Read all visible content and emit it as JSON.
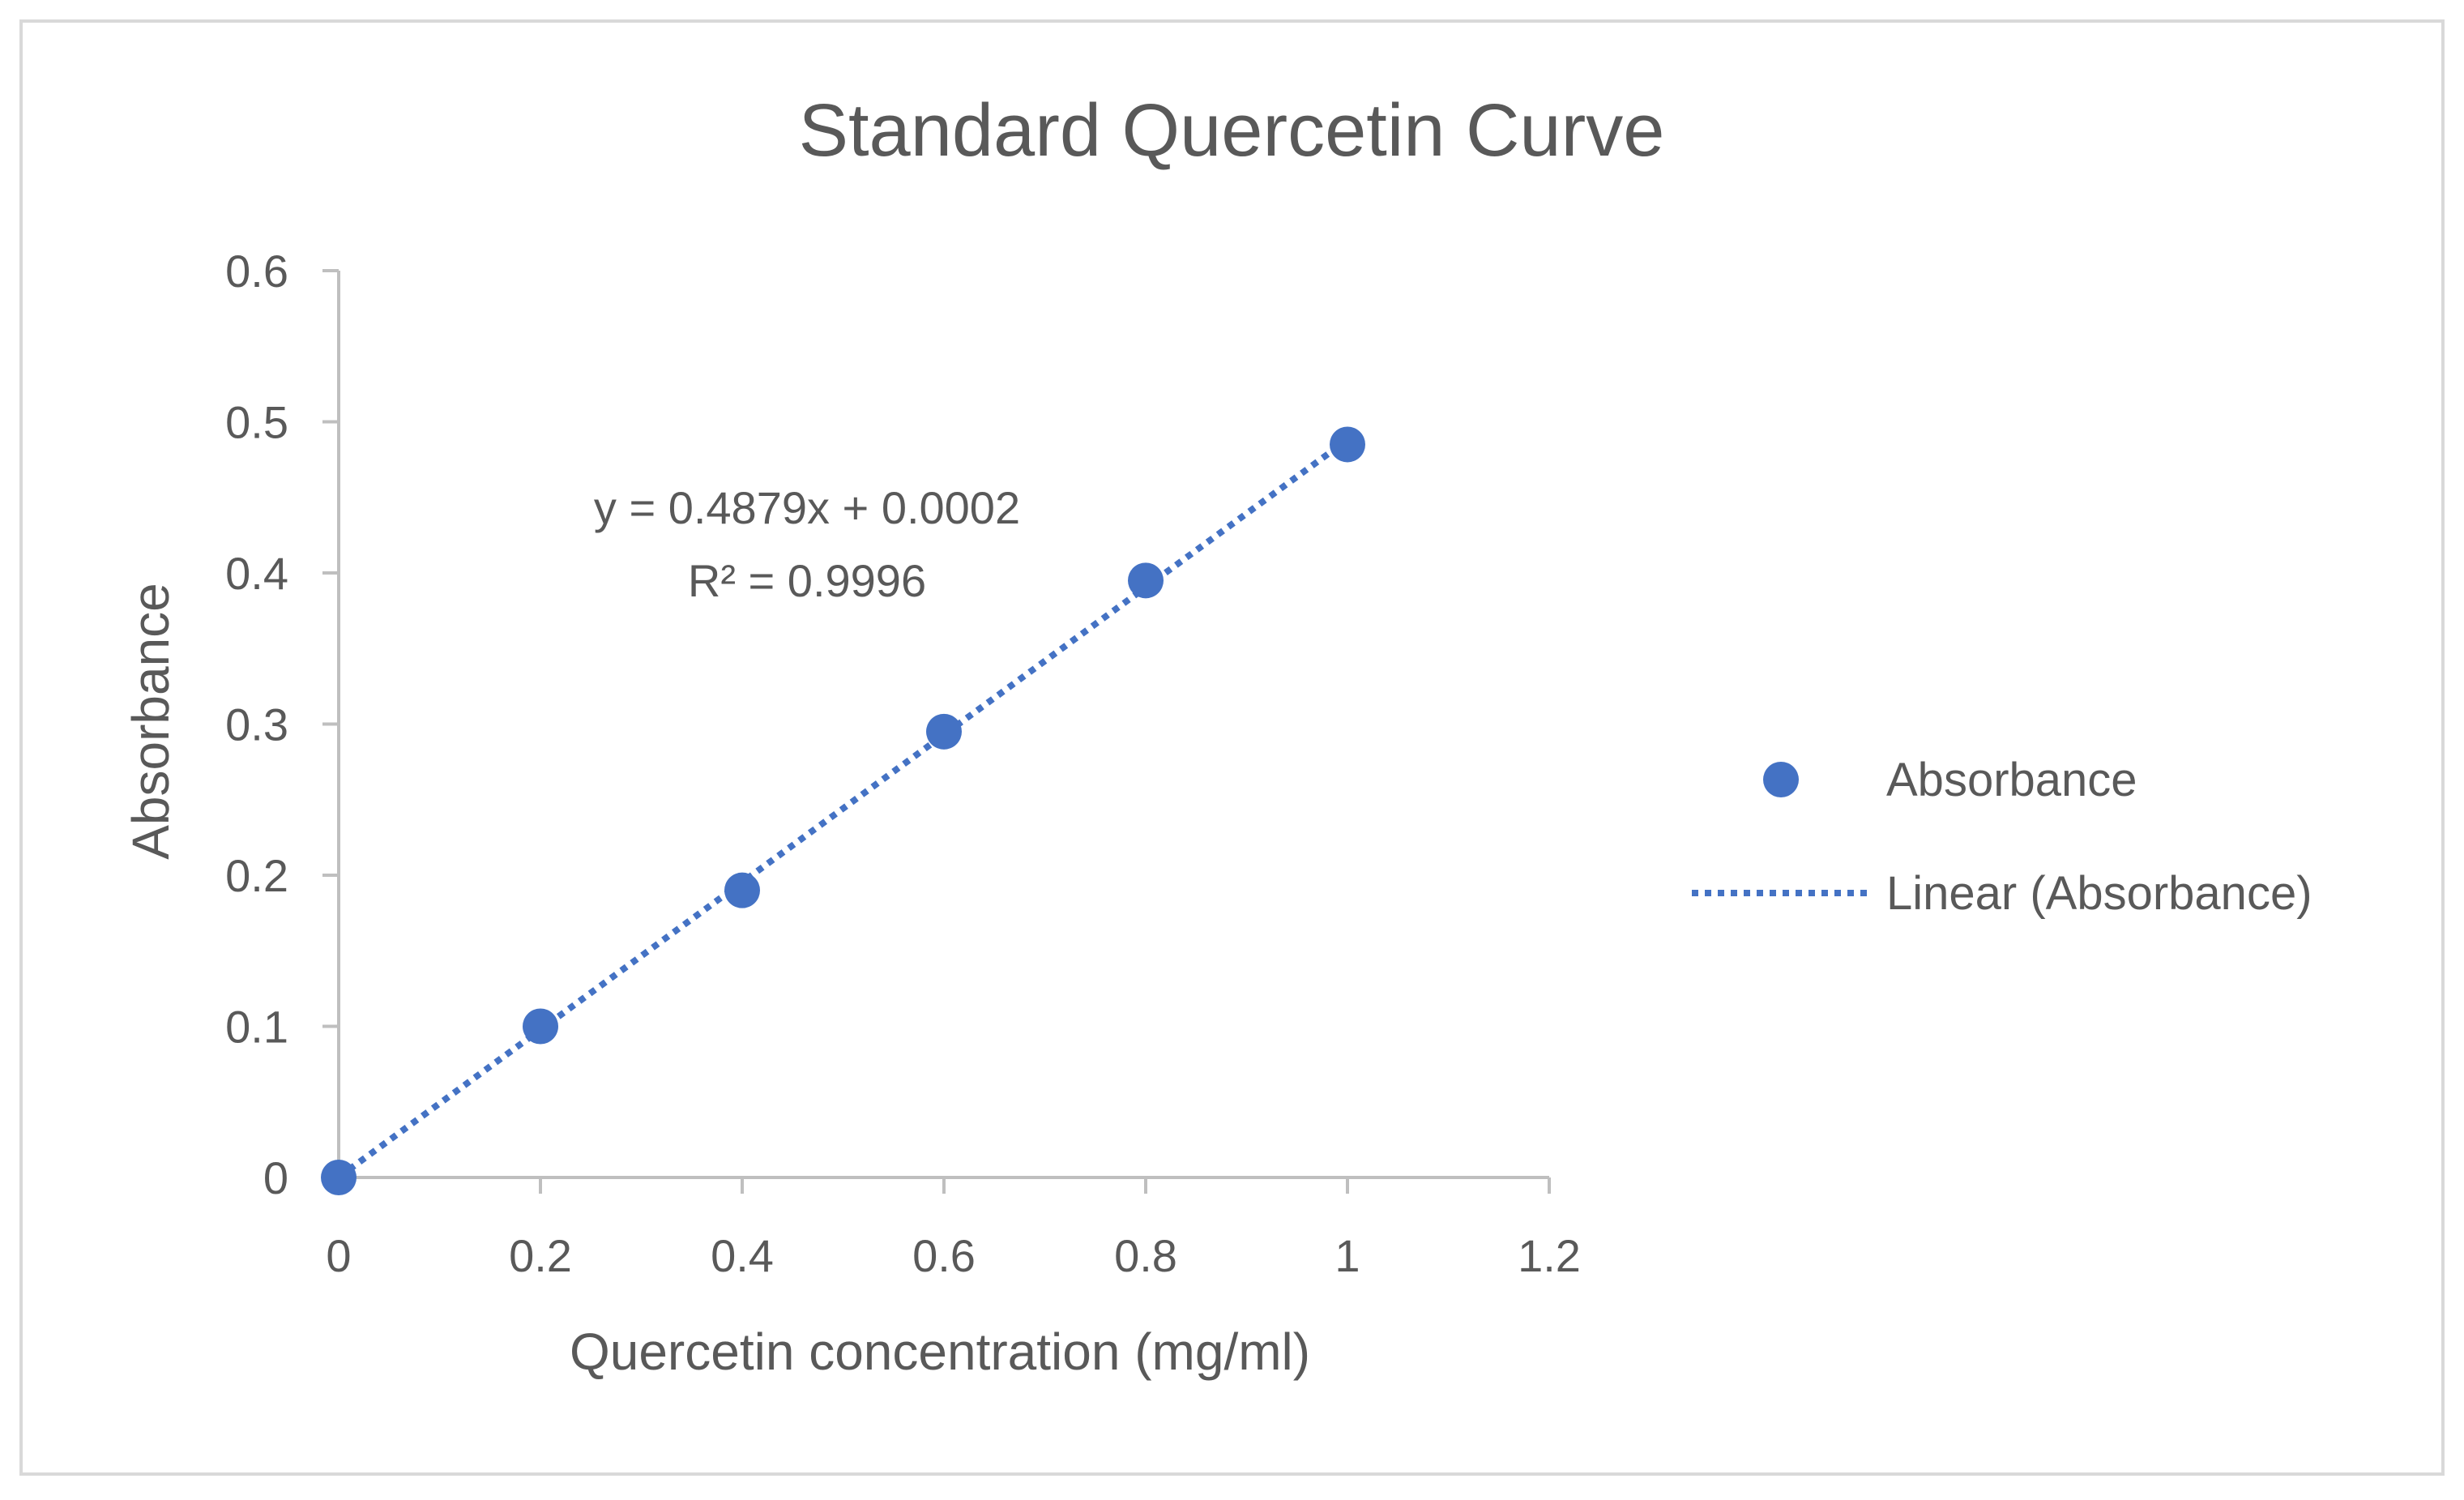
{
  "chart_data": {
    "type": "scatter",
    "title": "Standard Quercetin Curve",
    "xlabel": "Quercetin concentration (mg/ml)",
    "ylabel": "Absorbance",
    "xlim": [
      0,
      1.2
    ],
    "ylim": [
      0,
      0.6
    ],
    "x_ticks": [
      "0",
      "0.2",
      "0.4",
      "0.6",
      "0.8",
      "1",
      "1.2"
    ],
    "y_ticks": [
      "0",
      "0.1",
      "0.2",
      "0.3",
      "0.4",
      "0.5",
      "0.6"
    ],
    "grid": false,
    "series": [
      {
        "name": "Absorbance",
        "color": "#4472c4",
        "x": [
          0,
          0.2,
          0.4,
          0.6,
          0.8,
          1.0
        ],
        "y": [
          0,
          0.1,
          0.19,
          0.295,
          0.395,
          0.485
        ]
      }
    ],
    "trendline": {
      "name": "Linear (Absorbance)",
      "style": "dotted",
      "color": "#4472c4",
      "slope": 0.4879,
      "intercept": 0.0002,
      "x_range": [
        0,
        1.0
      ],
      "equation": "y = 0.4879x + 0.0002",
      "r_squared": "R² = 0.9996"
    },
    "legend": {
      "position": "right",
      "entries": [
        "Absorbance",
        "Linear (Absorbance)"
      ]
    },
    "colors": {
      "axis": "#bfbfbf",
      "text": "#595959",
      "border": "#d9d9d9"
    }
  }
}
